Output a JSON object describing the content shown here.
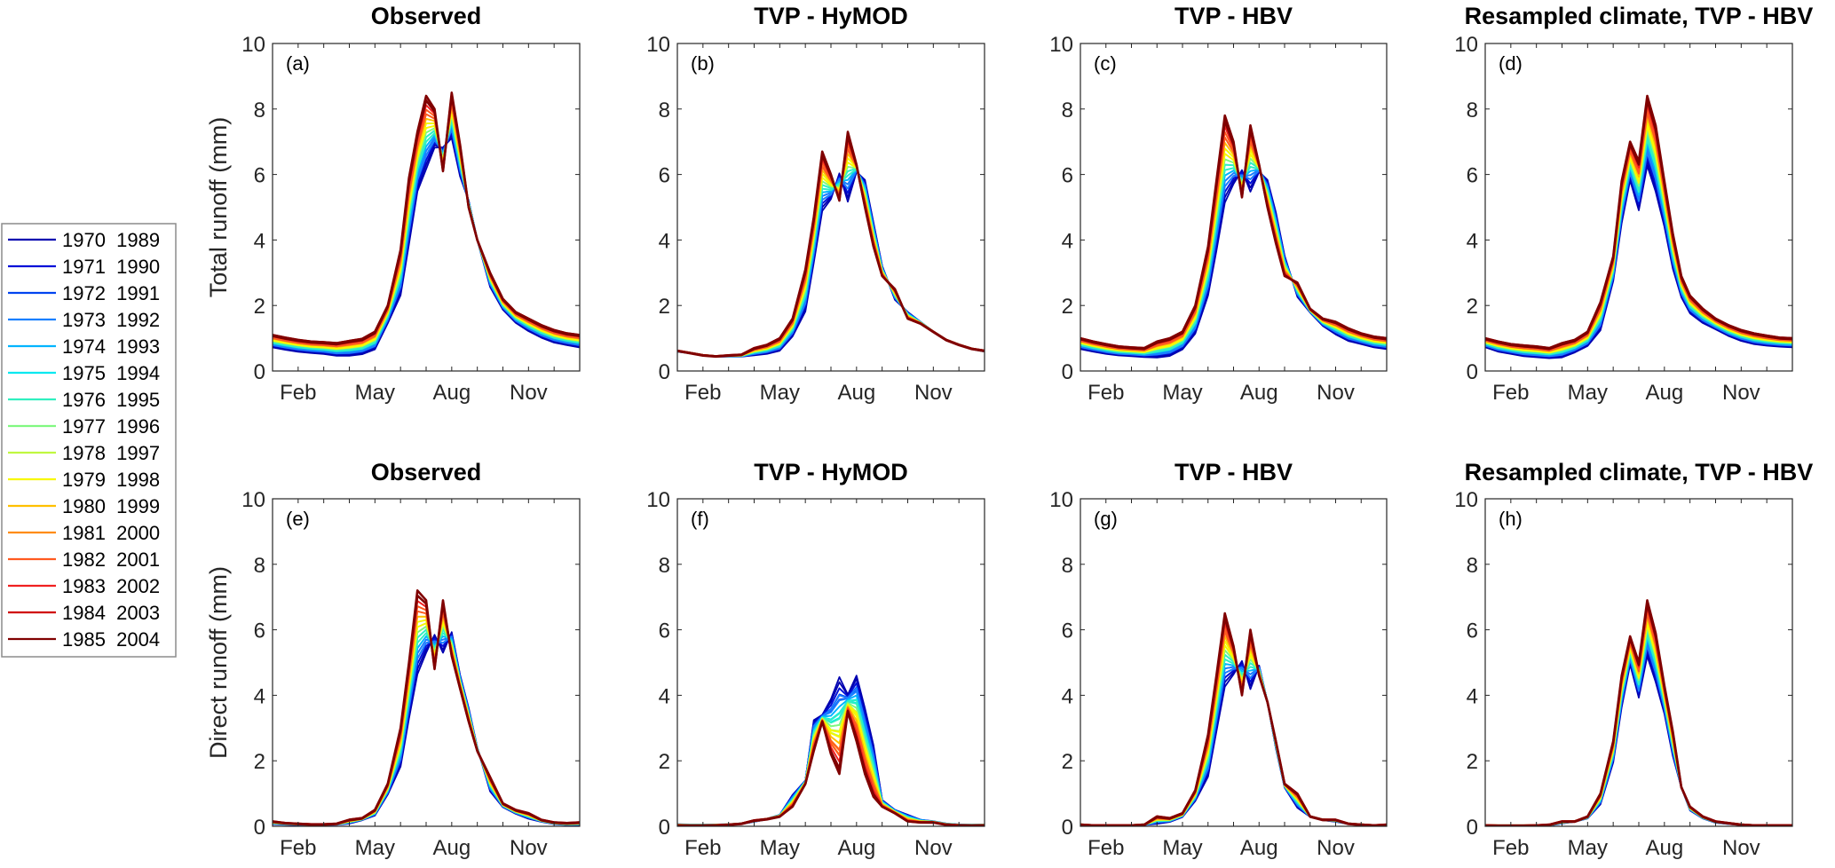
{
  "chart_data": {
    "type": "line",
    "legend": {
      "placement": "left",
      "entries": [
        {
          "label": "1970  1989",
          "color": "#0000b0"
        },
        {
          "label": "1971  1990",
          "color": "#0010d8"
        },
        {
          "label": "1972  1991",
          "color": "#0044f0"
        },
        {
          "label": "1973  1992",
          "color": "#1a80ff"
        },
        {
          "label": "1974  1993",
          "color": "#00b4ff"
        },
        {
          "label": "1975  1994",
          "color": "#00e8f0"
        },
        {
          "label": "1976  1995",
          "color": "#30f0c0"
        },
        {
          "label": "1977  1996",
          "color": "#80f880"
        },
        {
          "label": "1978  1997",
          "color": "#c0f840"
        },
        {
          "label": "1979  1998",
          "color": "#f8f800"
        },
        {
          "label": "1980  1999",
          "color": "#ffc000"
        },
        {
          "label": "1981  2000",
          "color": "#ff8c10"
        },
        {
          "label": "1982  2001",
          "color": "#ff5a20"
        },
        {
          "label": "1983  2002",
          "color": "#f02020"
        },
        {
          "label": "1984  2003",
          "color": "#d00000"
        },
        {
          "label": "1985  2004",
          "color": "#800000"
        }
      ]
    },
    "x_ticks": [
      "Feb",
      "May",
      "Aug",
      "Nov"
    ],
    "x_tick_months": [
      2,
      5,
      8,
      11
    ],
    "xlim_months": [
      1,
      13
    ],
    "y_ticks": [
      "0",
      "2",
      "4",
      "6",
      "8",
      "10"
    ],
    "ylim": [
      0,
      10
    ],
    "grid": false,
    "x_months": [
      1,
      1.5,
      2,
      2.5,
      3,
      3.5,
      4,
      4.5,
      5,
      5.5,
      6,
      6.33,
      6.66,
      7,
      7.33,
      7.66,
      8,
      8.33,
      8.66,
      9,
      9.5,
      10,
      10.5,
      11,
      11.5,
      12,
      12.5,
      13
    ],
    "panels": [
      {
        "id": "a",
        "label": "(a)",
        "title": "Observed",
        "ylabel": "Total runoff (mm)",
        "low": [
          0.75,
          0.68,
          0.62,
          0.58,
          0.55,
          0.5,
          0.5,
          0.55,
          0.7,
          1.5,
          2.4,
          4.0,
          5.6,
          6.3,
          6.9,
          6.8,
          7.2,
          6.0,
          5.2,
          4.0,
          2.6,
          1.9,
          1.5,
          1.25,
          1.05,
          0.9,
          0.82,
          0.75
        ],
        "high": [
          1.1,
          1.02,
          0.95,
          0.9,
          0.88,
          0.85,
          0.92,
          0.98,
          1.2,
          2.0,
          3.7,
          5.9,
          7.3,
          8.4,
          8.0,
          6.1,
          8.5,
          6.9,
          5.0,
          4.0,
          3.0,
          2.2,
          1.8,
          1.6,
          1.4,
          1.25,
          1.15,
          1.1
        ]
      },
      {
        "id": "b",
        "label": "(b)",
        "title": "TVP - HyMOD",
        "ylabel": "",
        "low": [
          0.6,
          0.55,
          0.48,
          0.45,
          0.45,
          0.45,
          0.5,
          0.55,
          0.65,
          1.1,
          1.9,
          3.4,
          5.0,
          5.3,
          6.0,
          5.3,
          6.1,
          5.8,
          4.5,
          3.2,
          2.2,
          1.8,
          1.5,
          1.2,
          0.95,
          0.8,
          0.68,
          0.6
        ],
        "high": [
          0.62,
          0.55,
          0.48,
          0.45,
          0.48,
          0.5,
          0.7,
          0.8,
          1.0,
          1.6,
          3.1,
          4.7,
          6.7,
          6.0,
          5.2,
          7.3,
          6.3,
          5.0,
          3.8,
          2.9,
          2.5,
          1.6,
          1.45,
          1.2,
          0.95,
          0.8,
          0.68,
          0.62
        ]
      },
      {
        "id": "c",
        "label": "(c)",
        "title": "TVP - HBV",
        "ylabel": "",
        "low": [
          0.7,
          0.62,
          0.55,
          0.5,
          0.48,
          0.45,
          0.45,
          0.5,
          0.7,
          1.2,
          2.4,
          3.8,
          5.3,
          5.8,
          6.1,
          5.6,
          6.1,
          5.8,
          4.8,
          3.5,
          2.3,
          1.8,
          1.4,
          1.15,
          0.95,
          0.85,
          0.75,
          0.7
        ],
        "high": [
          1.0,
          0.9,
          0.82,
          0.75,
          0.72,
          0.7,
          0.9,
          1.0,
          1.2,
          2.0,
          3.8,
          5.8,
          7.8,
          7.0,
          5.3,
          7.5,
          6.3,
          5.0,
          3.9,
          2.9,
          2.7,
          1.9,
          1.6,
          1.5,
          1.3,
          1.15,
          1.05,
          1.0
        ]
      },
      {
        "id": "d",
        "label": "(d)",
        "title": "Resampled climate, TVP - HBV",
        "ylabel": "",
        "low": [
          0.75,
          0.62,
          0.55,
          0.48,
          0.45,
          0.42,
          0.45,
          0.6,
          0.8,
          1.3,
          2.8,
          4.6,
          5.9,
          5.0,
          6.4,
          5.6,
          4.5,
          3.2,
          2.3,
          1.8,
          1.5,
          1.3,
          1.1,
          0.95,
          0.85,
          0.8,
          0.77,
          0.75
        ],
        "high": [
          1.0,
          0.9,
          0.82,
          0.78,
          0.75,
          0.7,
          0.85,
          0.95,
          1.2,
          2.1,
          3.5,
          5.8,
          7.0,
          6.4,
          8.4,
          7.5,
          5.8,
          4.2,
          2.9,
          2.3,
          1.9,
          1.6,
          1.4,
          1.25,
          1.15,
          1.08,
          1.02,
          1.0
        ]
      },
      {
        "id": "e",
        "label": "(e)",
        "title": "Observed",
        "ylabel": "Direct runoff (mm)",
        "low": [
          0.08,
          0.06,
          0.05,
          0.05,
          0.05,
          0.06,
          0.1,
          0.2,
          0.35,
          1.0,
          1.9,
          3.4,
          4.8,
          5.4,
          5.8,
          5.4,
          5.9,
          4.6,
          3.6,
          2.4,
          1.1,
          0.6,
          0.4,
          0.25,
          0.15,
          0.08,
          0.05,
          0.05
        ],
        "high": [
          0.15,
          0.1,
          0.08,
          0.06,
          0.06,
          0.08,
          0.2,
          0.25,
          0.5,
          1.3,
          3.0,
          5.0,
          7.2,
          6.9,
          4.8,
          6.9,
          5.2,
          4.2,
          3.2,
          2.3,
          1.5,
          0.7,
          0.5,
          0.4,
          0.2,
          0.12,
          0.1,
          0.12
        ]
      },
      {
        "id": "f",
        "label": "(f)",
        "title": "TVP - HyMOD",
        "ylabel": "",
        "low": [
          0.06,
          0.05,
          0.05,
          0.05,
          0.05,
          0.08,
          0.15,
          0.22,
          0.35,
          0.95,
          1.4,
          3.2,
          3.4,
          3.8,
          4.4,
          4.0,
          4.5,
          3.5,
          2.4,
          0.8,
          0.5,
          0.35,
          0.2,
          0.15,
          0.08,
          0.05,
          0.05,
          0.05
        ],
        "high": [
          0.03,
          0.02,
          0.02,
          0.03,
          0.05,
          0.08,
          0.18,
          0.22,
          0.3,
          0.6,
          1.3,
          2.3,
          3.2,
          2.2,
          1.6,
          3.5,
          2.6,
          1.6,
          0.9,
          0.6,
          0.4,
          0.15,
          0.12,
          0.12,
          0.05,
          0.03,
          0.02,
          0.03
        ]
      },
      {
        "id": "g",
        "label": "(g)",
        "title": "TVP - HBV",
        "ylabel": "",
        "low": [
          0.05,
          0.03,
          0.03,
          0.03,
          0.03,
          0.05,
          0.1,
          0.15,
          0.3,
          0.8,
          1.6,
          3.0,
          4.4,
          4.7,
          5.0,
          4.3,
          4.9,
          3.8,
          2.4,
          1.2,
          0.6,
          0.3,
          0.2,
          0.15,
          0.08,
          0.05,
          0.03,
          0.03
        ],
        "high": [
          0.05,
          0.03,
          0.03,
          0.03,
          0.03,
          0.05,
          0.3,
          0.25,
          0.4,
          1.1,
          2.8,
          4.6,
          6.5,
          5.5,
          4.0,
          6.0,
          4.6,
          3.8,
          2.6,
          1.3,
          1.0,
          0.3,
          0.2,
          0.2,
          0.08,
          0.05,
          0.03,
          0.05
        ]
      },
      {
        "id": "h",
        "label": "(h)",
        "title": "Resampled climate, TVP - HBV",
        "ylabel": "",
        "low": [
          0.03,
          0.02,
          0.02,
          0.02,
          0.02,
          0.03,
          0.1,
          0.15,
          0.25,
          0.7,
          2.0,
          3.7,
          5.0,
          4.0,
          5.3,
          4.5,
          3.5,
          2.2,
          1.2,
          0.5,
          0.25,
          0.12,
          0.08,
          0.05,
          0.03,
          0.03,
          0.03,
          0.03
        ],
        "high": [
          0.03,
          0.02,
          0.02,
          0.02,
          0.03,
          0.05,
          0.15,
          0.15,
          0.3,
          1.0,
          2.6,
          4.6,
          5.8,
          5.0,
          6.9,
          5.9,
          4.3,
          2.9,
          1.2,
          0.6,
          0.3,
          0.15,
          0.1,
          0.05,
          0.03,
          0.03,
          0.03,
          0.03
        ]
      }
    ]
  }
}
